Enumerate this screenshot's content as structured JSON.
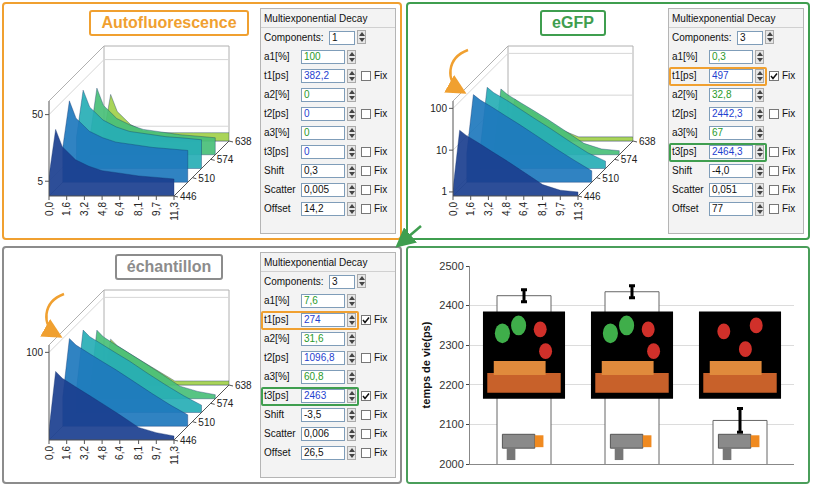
{
  "panels": [
    {
      "title": "Autofluorescence",
      "color": "#f0a030",
      "log": true,
      "times": [
        0,
        0.6,
        1.2,
        2.4,
        3.6,
        4.8,
        6.4,
        8.1,
        9.7,
        11.3
      ],
      "wavelengths": [
        446,
        494,
        542,
        590,
        638
      ],
      "counts": [
        [
          6,
          30,
          16.5,
          10.5,
          8.4,
          7.2,
          6.6,
          6,
          5.7,
          5.4
        ],
        [
          10,
          50,
          27.5,
          17.5,
          14,
          12,
          11,
          10,
          9.5,
          9
        ],
        [
          9,
          45,
          25,
          16,
          12.6,
          10.8,
          9.9,
          9,
          8.6,
          8.1
        ],
        [
          6,
          30,
          16.5,
          10.5,
          8.4,
          7.2,
          6.6,
          6,
          5.7,
          5.4
        ],
        [
          4,
          15,
          8.3,
          5.3,
          4.2,
          4,
          4,
          4,
          4,
          4
        ]
      ],
      "xlim": [
        0,
        11.3
      ],
      "xticks": [
        {
          "value": 0,
          "label": "0,0"
        },
        {
          "value": 1.6,
          "label": "1,6"
        },
        {
          "value": 3.2,
          "label": "3,2"
        },
        {
          "value": 4.8,
          "label": "4,8"
        },
        {
          "value": 6.4,
          "label": "6,4"
        },
        {
          "value": 8.1,
          "label": "8,1"
        },
        {
          "value": 9.7,
          "label": "9,7"
        },
        {
          "value": 11.3,
          "label": "11,3"
        }
      ],
      "ylim": [
        446,
        638
      ],
      "yticks": [
        446,
        510,
        574,
        638
      ],
      "zlim": [
        3,
        80
      ],
      "zticks": [
        5,
        50
      ],
      "table": {
        "header": "Multiexponential Decay",
        "components_label": "Components:",
        "components": "1",
        "fix_label": "Fix",
        "rows": [
          {
            "label": "a1[%]",
            "value": "100"
          },
          {
            "label": "t1[ps]",
            "value": "382,2",
            "fix": false
          },
          {
            "label": "a2[%]",
            "value": "0"
          },
          {
            "label": "t2[ps]",
            "value": "0",
            "fix": false
          },
          {
            "label": "a3[%]",
            "value": "0"
          },
          {
            "label": "t3[ps]",
            "value": "0",
            "fix": false
          },
          {
            "label": "Shift",
            "value": "0,3",
            "fix": false
          },
          {
            "label": "Scatter",
            "value": "0,005",
            "fix": false
          },
          {
            "label": "Offset",
            "value": "14,2",
            "fix": false
          }
        ]
      }
    },
    {
      "title": "eGFP",
      "color": "#3f9e4f",
      "log": true,
      "times": [
        0,
        0.6,
        1.2,
        2.4,
        3.6,
        4.8,
        6.4,
        8.1,
        9.7,
        11.3
      ],
      "wavelengths": [
        446,
        494,
        542,
        590,
        638
      ],
      "counts": [
        [
          1.2,
          30,
          22.5,
          14.4,
          9,
          5.7,
          3,
          1.5,
          1.1,
          1
        ],
        [
          4,
          100,
          75,
          48,
          30,
          19,
          10,
          5,
          2.7,
          1.5
        ],
        [
          2.8,
          70,
          52,
          34,
          21,
          13,
          7,
          3.5,
          1.9,
          1.2
        ],
        [
          1.2,
          30,
          22,
          14,
          9,
          5.7,
          3,
          1.5,
          1.1,
          1
        ],
        [
          1,
          8,
          6,
          3.8,
          2.4,
          1.5,
          1,
          1,
          1,
          1
        ]
      ],
      "xlim": [
        0,
        11.3
      ],
      "xticks": [
        {
          "value": 0,
          "label": "0,0"
        },
        {
          "value": 1.6,
          "label": "1,6"
        },
        {
          "value": 3.2,
          "label": "3,2"
        },
        {
          "value": 4.8,
          "label": "4,8"
        },
        {
          "value": 6.4,
          "label": "6,4"
        },
        {
          "value": 8.1,
          "label": "8,1"
        },
        {
          "value": 9.7,
          "label": "9,7"
        },
        {
          "value": 11.3,
          "label": "11,3"
        }
      ],
      "ylim": [
        446,
        638
      ],
      "yticks": [
        446,
        510,
        574,
        638
      ],
      "zlim": [
        0.8,
        150
      ],
      "zticks": [
        1,
        10,
        100
      ],
      "table": {
        "header": "Multiexponential Decay",
        "components_label": "Components:",
        "components": "3",
        "fix_label": "Fix",
        "rows": [
          {
            "label": "a1[%]",
            "value": "0,3"
          },
          {
            "label": "t1[ps]",
            "value": "497",
            "fix": true,
            "highlight": "#f0a030"
          },
          {
            "label": "a2[%]",
            "value": "32,8"
          },
          {
            "label": "t2[ps]",
            "value": "2442,3",
            "fix": false
          },
          {
            "label": "a3[%]",
            "value": "67"
          },
          {
            "label": "t3[ps]",
            "value": "2464,3",
            "fix": false,
            "highlight": "#3f9e4f"
          },
          {
            "label": "Shift",
            "value": "-4,0",
            "fix": false
          },
          {
            "label": "Scatter",
            "value": "0,051",
            "fix": false
          },
          {
            "label": "Offset",
            "value": "77",
            "fix": false
          }
        ]
      }
    },
    {
      "title": "échantillon",
      "color": "#8c8c8c",
      "log": true,
      "times": [
        0,
        0.6,
        1.2,
        2.4,
        3.6,
        4.8,
        6.4,
        8.1,
        9.7,
        11.3
      ],
      "wavelengths": [
        446,
        494,
        542,
        590,
        638
      ],
      "counts": [
        [
          1.4,
          35,
          24,
          15,
          9.5,
          6,
          3.2,
          1.6,
          1.2,
          1
        ],
        [
          4,
          100,
          70,
          44,
          28,
          18,
          9.5,
          4.8,
          2.6,
          1.5
        ],
        [
          3,
          75,
          52,
          33,
          21,
          13.5,
          7,
          3.6,
          2,
          1.2
        ],
        [
          1.4,
          35,
          24,
          15,
          9.5,
          6,
          3.2,
          1.6,
          1.2,
          1
        ],
        [
          1,
          10,
          7,
          4.4,
          2.8,
          1.8,
          1,
          1,
          1,
          1
        ]
      ],
      "xlim": [
        0,
        11.3
      ],
      "xticks": [
        {
          "value": 0,
          "label": "0,0"
        },
        {
          "value": 1.6,
          "label": "1,6"
        },
        {
          "value": 3.2,
          "label": "3,2"
        },
        {
          "value": 4.8,
          "label": "4,8"
        },
        {
          "value": 6.4,
          "label": "6,4"
        },
        {
          "value": 8.1,
          "label": "8,1"
        },
        {
          "value": 9.7,
          "label": "9,7"
        },
        {
          "value": 11.3,
          "label": "11,3"
        }
      ],
      "ylim": [
        446,
        638
      ],
      "yticks": [
        446,
        510,
        574,
        638
      ],
      "zlim": [
        0.8,
        150
      ],
      "zticks": [
        100
      ],
      "table": {
        "header": "Multiexponential Decay",
        "components_label": "Components:",
        "components": "3",
        "fix_label": "Fix",
        "rows": [
          {
            "label": "a1[%]",
            "value": "7,6"
          },
          {
            "label": "t1[ps]",
            "value": "274",
            "fix": true,
            "highlight": "#f0a030"
          },
          {
            "label": "a2[%]",
            "value": "31,6"
          },
          {
            "label": "t2[ps]",
            "value": "1096,8",
            "fix": false
          },
          {
            "label": "a3[%]",
            "value": "60,8"
          },
          {
            "label": "t3[ps]",
            "value": "2463",
            "fix": true,
            "highlight": "#3f9e4f"
          },
          {
            "label": "Shift",
            "value": "-3,5",
            "fix": false
          },
          {
            "label": "Scatter",
            "value": "0,006",
            "fix": false
          },
          {
            "label": "Offset",
            "value": "26,5",
            "fix": false
          }
        ]
      }
    }
  ],
  "chart_data": {
    "type": "bar",
    "categories": [
      null,
      null,
      null
    ],
    "values": [
      2425,
      2435,
      2110
    ],
    "errors": [
      15,
      15,
      30
    ],
    "color": "#ffffff",
    "y_label": "temps de vie(ps)",
    "ylim": [
      2000,
      2500
    ],
    "yticks": [
      2000,
      2100,
      2200,
      2300,
      2400,
      2500
    ],
    "grid": true,
    "tick_labels": "y"
  }
}
